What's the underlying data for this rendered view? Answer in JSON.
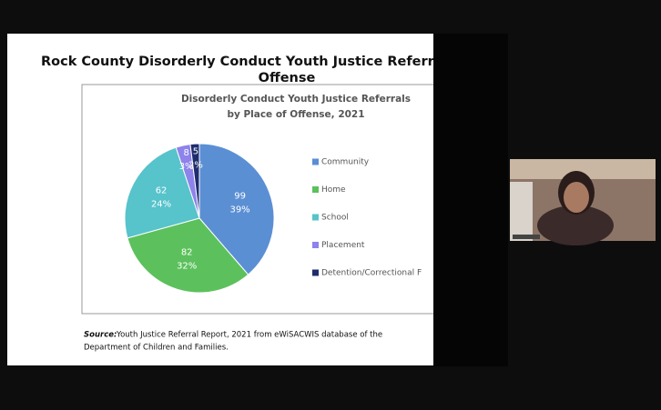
{
  "slide": {
    "title_lines": [
      "Rock County Disorderly Conduct Youth Justice Referra",
      "Offense"
    ],
    "source_label": "Source:",
    "source_lines": [
      " Youth Justice Referral Report, 2021 from eWiSACWIS database of the",
      "Department of Children and Families."
    ]
  },
  "chart_data": {
    "type": "pie",
    "title_lines": [
      "Disorderly Conduct Youth Justice Referrals",
      "by Place of Offense, 2021"
    ],
    "categories": [
      "Community",
      "Home",
      "School",
      "Placement",
      "Detention/Correctional F"
    ],
    "values": [
      99,
      82,
      62,
      8,
      5
    ],
    "percent_labels": [
      "39%",
      "32%",
      "24%",
      "3%",
      "2%"
    ],
    "colors": [
      "#5b8fd4",
      "#5cc15c",
      "#57c3cb",
      "#8d83ea",
      "#1f2d6e"
    ],
    "legend": "right"
  }
}
